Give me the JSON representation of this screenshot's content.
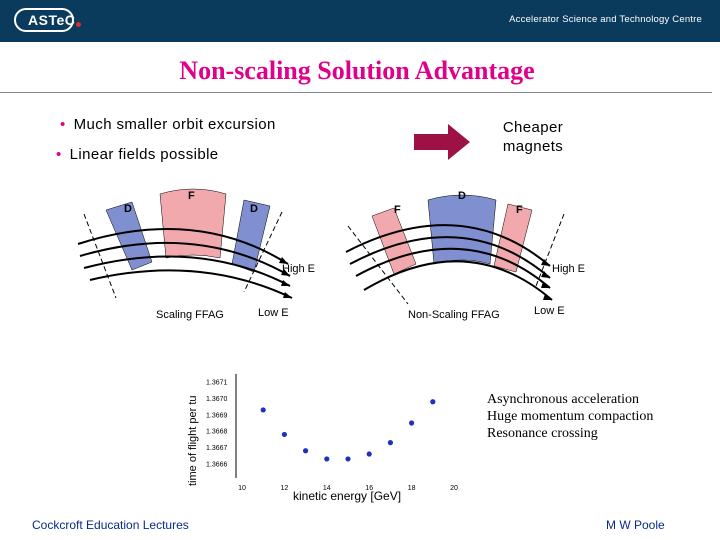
{
  "header": {
    "logo_text": "ASTeC",
    "centre_name": "Accelerator Science and Technology Centre"
  },
  "title": "Non-scaling Solution Advantage",
  "bullets": [
    "Much smaller orbit excursion",
    "Linear fields possible"
  ],
  "result": [
    "Cheaper",
    "magnets"
  ],
  "scaling_diagram": {
    "magnet_labels": [
      "D",
      "F",
      "D"
    ],
    "energy_labels": [
      "High E",
      "Low E"
    ],
    "caption": "Scaling FFAG"
  },
  "nonscaling_diagram": {
    "magnet_labels": [
      "F",
      "D",
      "F"
    ],
    "energy_labels": [
      "High E",
      "Low E"
    ],
    "caption": "Non-Scaling FFAG"
  },
  "chart_data": {
    "type": "scatter",
    "xlabel": "kinetic energy [GeV]",
    "ylabel": "time of flight per tu",
    "xlim": [
      10,
      20
    ],
    "ylim": [
      1.36655,
      1.36715
    ],
    "x_ticks": [
      "10",
      "12",
      "14",
      "16",
      "18",
      "20"
    ],
    "y_ticks": [
      "1.3666",
      "1.3667",
      "1.3668",
      "1.3669",
      "1.3670",
      "1.3671"
    ],
    "x": [
      11,
      12,
      13,
      14,
      15,
      16,
      17,
      18,
      19
    ],
    "y": [
      1.36693,
      1.36678,
      1.36668,
      1.36663,
      1.36663,
      1.36666,
      1.36673,
      1.36685,
      1.36698
    ],
    "grid": false,
    "point_color": "#1f2fbf"
  },
  "notes": [
    "Asynchronous acceleration",
    "Huge momentum compaction",
    "Resonance crossing"
  ],
  "footer": {
    "left": "Cockcroft Education Lectures",
    "right": "M W Poole"
  },
  "colors": {
    "header_bg": "#0a3a5c",
    "title": "#e0008a",
    "arrow": "#9e1145",
    "magnet_blue": "#7f8fd0",
    "magnet_pink": "#f2a9ad",
    "footer_text": "#0a2a8a"
  }
}
